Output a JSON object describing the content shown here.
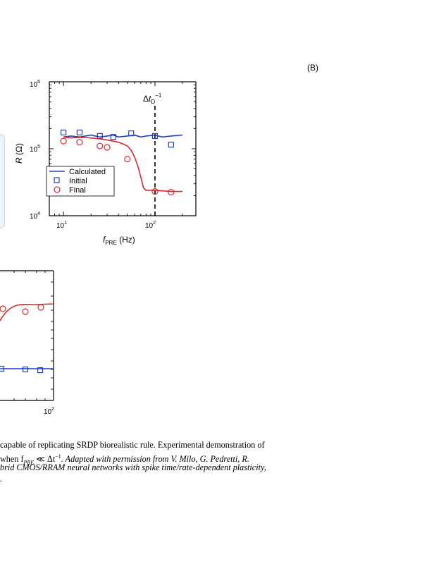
{
  "panel_b": {
    "label": "(B)",
    "y_axis": {
      "title": "R (Ω)",
      "ticks": [
        "10^4",
        "10^5",
        "10^6"
      ]
    },
    "x_axis": {
      "title": "f_PRE (Hz)",
      "ticks": [
        "10^1",
        "10^2"
      ]
    },
    "vline_label": "Δt_D^-1",
    "legend": [
      "Calculated",
      "Initial",
      "Final"
    ]
  },
  "panel_partial": {
    "x_tick_visible": "10^2"
  },
  "caption": {
    "line1": "capable of replicating SRDP biorealistic rule. Experimental demonstration of",
    "line2_a": "when f",
    "line2_sub": "PRE",
    "line2_b": " ≪ Δt",
    "line2_sup": "−1",
    "line2_c": ". Adapted with permission from V. Milo, G. Pedretti, R.",
    "line3": "brid CMOS/RRAM neural networks with spike time/rate-dependent plasticity,",
    "line4": "."
  },
  "colors": {
    "calculated": "#1f3fc8",
    "initial": "#1f3fc8",
    "final": "#d9282b"
  },
  "chart_data": [
    {
      "type": "line",
      "title": "(B)",
      "xlabel": "f_PRE (Hz)",
      "ylabel": "R (Ω)",
      "xscale": "log",
      "yscale": "log",
      "xlim": [
        7,
        280
      ],
      "ylim": [
        10000,
        1000000
      ],
      "vline_x": 100,
      "legend_position": "lower-left",
      "series": [
        {
          "name": "Calculated",
          "style": "line",
          "color": "#1f3fc8",
          "x": [
            10,
            12,
            15,
            20,
            25,
            30,
            35,
            40,
            50,
            60,
            70,
            80,
            100,
            120,
            150,
            200
          ],
          "y": [
            150000,
            155000,
            150000,
            160000,
            150000,
            155000,
            160000,
            150000,
            155000,
            160000,
            150000,
            155000,
            160000,
            150000,
            155000,
            160000
          ]
        },
        {
          "name": "Initial",
          "style": "square",
          "color": "#1f3fc8",
          "x": [
            10,
            15,
            25,
            35,
            55,
            100,
            150
          ],
          "y": [
            175000,
            175000,
            155000,
            150000,
            170000,
            155000,
            115000
          ]
        },
        {
          "name": "Final",
          "style": "line",
          "color": "#d9282b",
          "x": [
            10,
            12,
            15,
            20,
            25,
            30,
            35,
            40,
            45,
            50,
            55,
            60,
            65,
            70,
            75,
            80,
            100,
            120,
            150,
            200
          ],
          "y": [
            150000,
            145000,
            148000,
            145000,
            140000,
            135000,
            130000,
            125000,
            118000,
            110000,
            95000,
            75000,
            55000,
            38000,
            26000,
            24000,
            24000,
            23500,
            23000,
            23000
          ]
        },
        {
          "name": "Final",
          "style": "circle",
          "color": "#d9282b",
          "x": [
            10,
            15,
            25,
            30,
            50,
            100,
            150
          ],
          "y": [
            130000,
            125000,
            110000,
            105000,
            70000,
            23000,
            22500
          ]
        }
      ]
    },
    {
      "type": "line",
      "xscale": "log",
      "partial": true,
      "series": [
        {
          "style": "line",
          "color": "#d9282b",
          "x": [
            1,
            2,
            3,
            4
          ],
          "y": [
            0.78,
            0.7,
            0.66,
            0.66
          ]
        },
        {
          "style": "circle",
          "color": "#d9282b",
          "x": [
            1,
            2,
            3
          ],
          "y": [
            0.7,
            0.73,
            0.68
          ]
        },
        {
          "style": "line",
          "color": "#1f3fc8",
          "x": [
            1,
            2,
            3,
            4
          ],
          "y": [
            0.13,
            0.13,
            0.13,
            0.13
          ]
        },
        {
          "style": "square",
          "color": "#1f3fc8",
          "x": [
            1,
            2,
            3
          ],
          "y": [
            0.13,
            0.13,
            0.12
          ]
        }
      ]
    }
  ]
}
